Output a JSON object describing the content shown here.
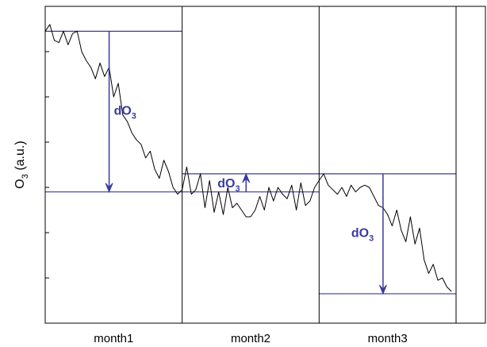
{
  "chart_data": {
    "type": "line",
    "xlabel": "",
    "ylabel_main": "O",
    "ylabel_sub": "3",
    "ylabel_tail": " (a.u.)",
    "xlim": [
      0,
      90
    ],
    "ylim": [
      0,
      14
    ],
    "grid": false,
    "categories": [
      "month1",
      "month2",
      "month3"
    ],
    "month_boundaries": [
      30,
      60
    ],
    "series": [
      {
        "values": [
          [
            0,
            12.9
          ],
          [
            1,
            13.2
          ],
          [
            2,
            12.5
          ],
          [
            3,
            12.4
          ],
          [
            4,
            12.9
          ],
          [
            5,
            12.3
          ],
          [
            6,
            12.8
          ],
          [
            7,
            12.9
          ],
          [
            8,
            12.0
          ],
          [
            9,
            11.6
          ],
          [
            10,
            11.3
          ],
          [
            11,
            10.8
          ],
          [
            12,
            11.5
          ],
          [
            13,
            10.9
          ],
          [
            14,
            11.3
          ],
          [
            15,
            10.0
          ],
          [
            16,
            10.6
          ],
          [
            17,
            9.2
          ],
          [
            18,
            8.9
          ],
          [
            19,
            8.4
          ],
          [
            20,
            8.1
          ],
          [
            21,
            7.9
          ],
          [
            22,
            7.3
          ],
          [
            23,
            7.6
          ],
          [
            24,
            6.8
          ],
          [
            25,
            6.4
          ],
          [
            26,
            7.2
          ],
          [
            27,
            6.7
          ],
          [
            28,
            6.0
          ],
          [
            29,
            5.7
          ],
          [
            30,
            5.9
          ],
          [
            31,
            6.9
          ],
          [
            32,
            5.7
          ],
          [
            33,
            5.9
          ],
          [
            34,
            6.6
          ],
          [
            35,
            5.1
          ],
          [
            36,
            6.3
          ],
          [
            37,
            4.9
          ],
          [
            38,
            5.8
          ],
          [
            39,
            4.8
          ],
          [
            40,
            6.0
          ],
          [
            41,
            5.1
          ],
          [
            42,
            5.3
          ],
          [
            43,
            5.0
          ],
          [
            44,
            4.7
          ],
          [
            45,
            4.7
          ],
          [
            46,
            5.0
          ],
          [
            47,
            5.6
          ],
          [
            48,
            5.0
          ],
          [
            49,
            6.0
          ],
          [
            50,
            5.4
          ],
          [
            51,
            6.0
          ],
          [
            52,
            5.7
          ],
          [
            53,
            5.5
          ],
          [
            54,
            6.1
          ],
          [
            55,
            5.0
          ],
          [
            56,
            6.2
          ],
          [
            57,
            5.2
          ],
          [
            58,
            5.4
          ],
          [
            59,
            6.0
          ],
          [
            60,
            6.3
          ],
          [
            61,
            6.6
          ],
          [
            62,
            6.1
          ],
          [
            63,
            5.9
          ],
          [
            64,
            5.7
          ],
          [
            65,
            6.0
          ],
          [
            66,
            5.6
          ],
          [
            67,
            6.1
          ],
          [
            68,
            5.8
          ],
          [
            69,
            6.0
          ],
          [
            70,
            6.1
          ],
          [
            71,
            6.0
          ],
          [
            72,
            5.6
          ],
          [
            73,
            5.2
          ],
          [
            74,
            5.1
          ],
          [
            75,
            4.8
          ],
          [
            76,
            4.3
          ],
          [
            77,
            5.0
          ],
          [
            78,
            4.1
          ],
          [
            79,
            3.6
          ],
          [
            80,
            4.7
          ],
          [
            81,
            3.5
          ],
          [
            82,
            4.2
          ],
          [
            83,
            2.8
          ],
          [
            84,
            2.2
          ],
          [
            85,
            2.6
          ],
          [
            86,
            1.9
          ],
          [
            87,
            2.0
          ],
          [
            88,
            1.6
          ],
          [
            89,
            1.4
          ]
        ],
        "color": "#000000"
      }
    ],
    "reference_lines": [
      {
        "y": 12.9,
        "x_from": 0,
        "x_to": 30,
        "color": "#3a3aa0"
      },
      {
        "y": 5.8,
        "x_from": 0,
        "x_to": 60,
        "color": "#3a3aa0"
      },
      {
        "y": 6.6,
        "x_from": 30,
        "x_to": 90,
        "color": "#3a3aa0"
      },
      {
        "y": 1.3,
        "x_from": 60,
        "x_to": 90,
        "color": "#3a3aa0"
      }
    ],
    "annotations": [
      {
        "label_main": "dO",
        "label_sub": "3",
        "x": 14,
        "y_from": 12.9,
        "y_to": 5.8,
        "direction": "down"
      },
      {
        "label_main": "dO",
        "label_sub": "3",
        "x": 44,
        "y_from": 5.8,
        "y_to": 6.6,
        "direction": "up"
      },
      {
        "label_main": "dO",
        "label_sub": "3",
        "x": 74,
        "y_from": 6.6,
        "y_to": 1.3,
        "direction": "down"
      }
    ],
    "accent_color": "#3a3aa0",
    "line_color": "#000000",
    "axis_color": "#000000"
  }
}
